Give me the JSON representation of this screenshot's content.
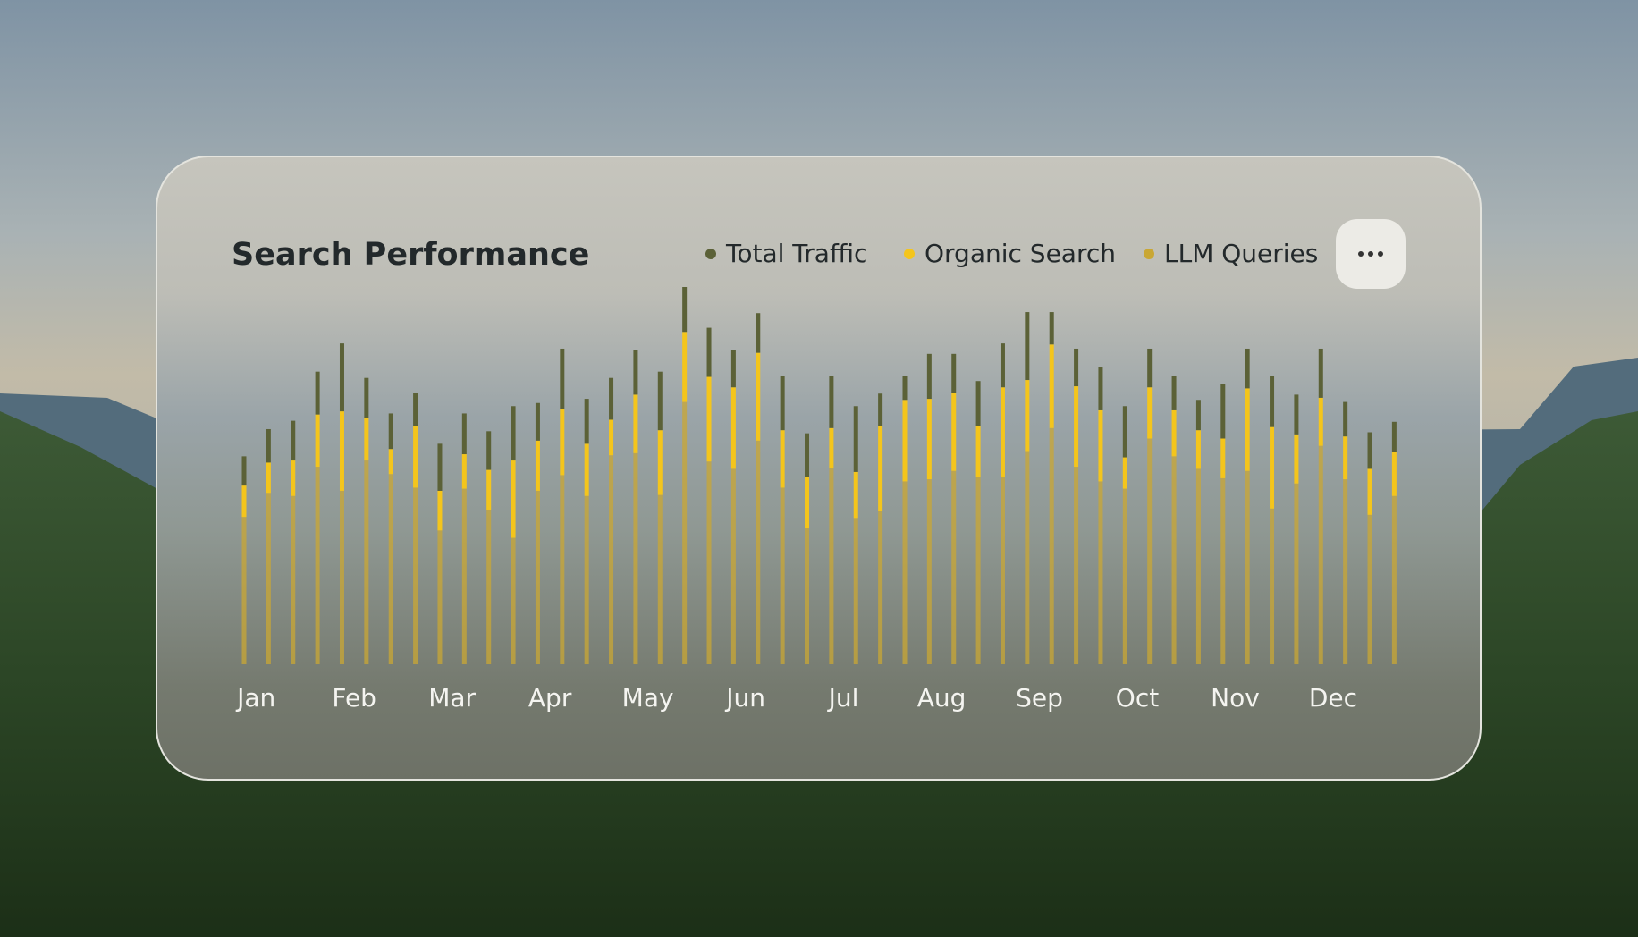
{
  "chart_data": {
    "type": "stacked-bar",
    "title": "Search Performance",
    "categories": [
      null,
      "Jan",
      null,
      null,
      null,
      "Feb",
      null,
      null,
      null,
      "Mar",
      null,
      null,
      null,
      "Apr",
      null,
      null,
      null,
      "May",
      null,
      null,
      null,
      "Jun",
      null,
      null,
      null,
      "Jul",
      null,
      null,
      null,
      "Aug",
      null,
      null,
      null,
      "Sep",
      null,
      null,
      null,
      "Oct",
      null,
      null,
      null,
      "Nov",
      null,
      null,
      null,
      "Dec",
      null,
      null
    ],
    "series": [
      {
        "name": "LLM Queries",
        "color": "#c9a734",
        "values": [
          141,
          164,
          161,
          189,
          166,
          195,
          182,
          169,
          128,
          168,
          148,
          121,
          166,
          181,
          161,
          200,
          202,
          162,
          251,
          194,
          187,
          214,
          169,
          130,
          188,
          140,
          147,
          175,
          177,
          185,
          179,
          179,
          204,
          226,
          189,
          175,
          168,
          216,
          199,
          187,
          178,
          185,
          149,
          173,
          209,
          177,
          143,
          161
        ]
      },
      {
        "name": "Organic Search",
        "color": "#f4c51c",
        "values": [
          30,
          29,
          34,
          50,
          76,
          41,
          24,
          59,
          38,
          33,
          38,
          74,
          48,
          63,
          50,
          34,
          56,
          62,
          67,
          81,
          78,
          84,
          55,
          49,
          38,
          44,
          81,
          78,
          77,
          75,
          49,
          86,
          68,
          80,
          77,
          68,
          30,
          49,
          44,
          37,
          38,
          79,
          78,
          47,
          46,
          41,
          44,
          42
        ]
      },
      {
        "name": "Total Traffic",
        "color": "#5b6137",
        "values": [
          28,
          32,
          38,
          41,
          65,
          38,
          34,
          32,
          45,
          39,
          37,
          52,
          36,
          58,
          43,
          40,
          43,
          56,
          43,
          47,
          36,
          38,
          52,
          42,
          50,
          63,
          31,
          23,
          43,
          37,
          43,
          42,
          65,
          31,
          36,
          41,
          49,
          37,
          33,
          29,
          52,
          38,
          49,
          38,
          47,
          33,
          35,
          29
        ]
      }
    ],
    "legend_order": [
      "Total Traffic",
      "Organic Search",
      "LLM Queries"
    ]
  }
}
